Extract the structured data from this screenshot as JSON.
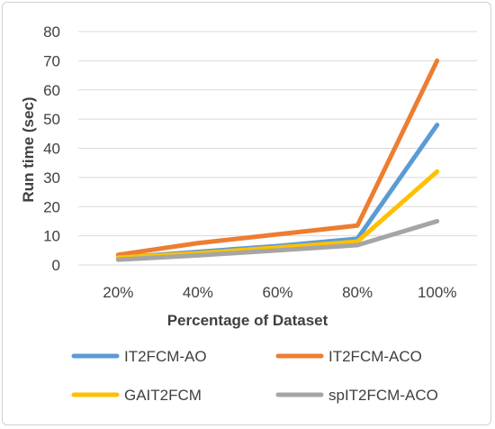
{
  "chart_data": {
    "type": "line",
    "title": "",
    "xlabel": "Percentage of Dataset",
    "ylabel": "Run time (sec)",
    "categories": [
      "20%",
      "40%",
      "60%",
      "80%",
      "100%"
    ],
    "ylim": [
      0,
      80
    ],
    "yticks": [
      0,
      10,
      20,
      30,
      40,
      50,
      60,
      70,
      80
    ],
    "grid": true,
    "legend_position": "bottom",
    "series": [
      {
        "name": "IT2FCM-AO",
        "color": "#5B9BD5",
        "values": [
          2.5,
          4.5,
          6.5,
          9,
          48
        ]
      },
      {
        "name": "IT2FCM-ACO",
        "color": "#ED7D31",
        "values": [
          3.5,
          7.5,
          10.5,
          13.5,
          70
        ]
      },
      {
        "name": "GAIT2FCM",
        "color": "#FFC000",
        "values": [
          2.5,
          4,
          6,
          8,
          32
        ]
      },
      {
        "name": "spIT2FCM-ACO",
        "color": "#A5A5A5",
        "values": [
          1.8,
          3.3,
          5,
          6.8,
          15
        ]
      }
    ]
  }
}
